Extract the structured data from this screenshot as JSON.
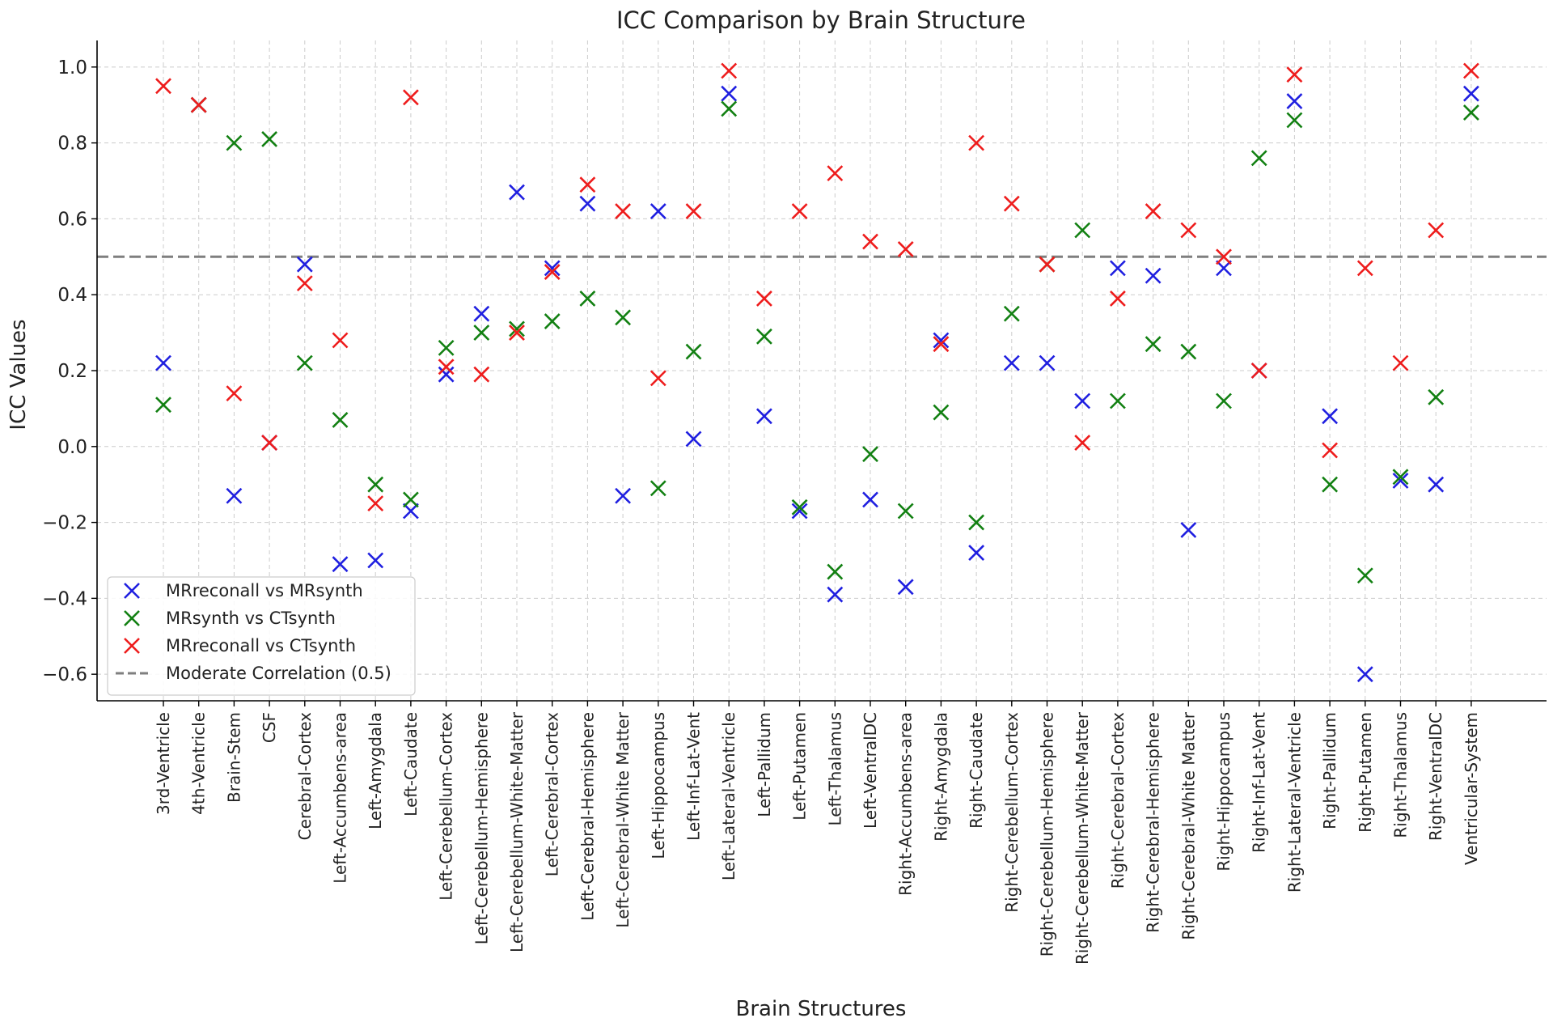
{
  "chart_data": {
    "type": "scatter",
    "title": "ICC Comparison by Brain Structure",
    "xlabel": "Brain Structures",
    "ylabel": "ICC Values",
    "ylim": [
      -0.67,
      1.07
    ],
    "yticks": [
      -0.6,
      -0.4,
      -0.2,
      0.0,
      0.2,
      0.4,
      0.6,
      0.8,
      1.0
    ],
    "ytick_labels": [
      "−0.6",
      "−0.4",
      "−0.2",
      "0.0",
      "0.2",
      "0.4",
      "0.6",
      "0.8",
      "1.0"
    ],
    "grid": true,
    "legend_position": "lower-left",
    "categories": [
      "3rd-Ventricle",
      "4th-Ventricle",
      "Brain-Stem",
      "CSF",
      "Cerebral-Cortex",
      "Left-Accumbens-area",
      "Left-Amygdala",
      "Left-Caudate",
      "Left-Cerebellum-Cortex",
      "Left-Cerebellum-Hemisphere",
      "Left-Cerebellum-White-Matter",
      "Left-Cerebral-Cortex",
      "Left-Cerebral-Hemisphere",
      "Left-Cerebral-White Matter",
      "Left-Hippocampus",
      "Left-Inf-Lat-Vent",
      "Left-Lateral-Ventricle",
      "Left-Pallidum",
      "Left-Putamen",
      "Left-Thalamus",
      "Left-VentralDC",
      "Right-Accumbens-area",
      "Right-Amygdala",
      "Right-Caudate",
      "Right-Cerebellum-Cortex",
      "Right-Cerebellum-Hemisphere",
      "Right-Cerebellum-White-Matter",
      "Right-Cerebral-Cortex",
      "Right-Cerebral-Hemisphere",
      "Right-Cerebral-White Matter",
      "Right-Hippocampus",
      "Right-Inf-Lat-Vent",
      "Right-Lateral-Ventricle",
      "Right-Pallidum",
      "Right-Putamen",
      "Right-Thalamus",
      "Right-VentralDC",
      "Ventricular-System"
    ],
    "series": [
      {
        "name": "MRreconall vs MRsynth",
        "color": "#1f1fe0",
        "marker": "x",
        "values": [
          0.22,
          0.9,
          -0.13,
          0.01,
          0.48,
          -0.31,
          -0.3,
          -0.17,
          0.19,
          0.35,
          0.67,
          0.47,
          0.64,
          -0.13,
          0.62,
          0.02,
          0.93,
          0.08,
          -0.17,
          -0.39,
          -0.14,
          -0.37,
          0.28,
          -0.28,
          0.22,
          0.22,
          0.12,
          0.47,
          0.45,
          -0.22,
          0.47,
          0.2,
          0.91,
          0.08,
          -0.6,
          -0.09,
          -0.1,
          0.93
        ]
      },
      {
        "name": "MRsynth vs CTsynth",
        "color": "#128012",
        "marker": "x",
        "values": [
          0.11,
          0.9,
          0.8,
          0.81,
          0.22,
          0.07,
          -0.1,
          -0.14,
          0.26,
          0.3,
          0.31,
          0.33,
          0.39,
          0.34,
          -0.11,
          0.25,
          0.89,
          0.29,
          -0.16,
          -0.33,
          -0.02,
          -0.17,
          0.09,
          -0.2,
          0.35,
          0.48,
          0.57,
          0.12,
          0.27,
          0.25,
          0.12,
          0.76,
          0.86,
          -0.1,
          -0.34,
          -0.08,
          0.13,
          0.88
        ]
      },
      {
        "name": "MRreconall vs CTsynth",
        "color": "#ee1c1c",
        "marker": "x",
        "values": [
          0.95,
          0.9,
          0.14,
          0.01,
          0.43,
          0.28,
          -0.15,
          0.92,
          0.21,
          0.19,
          0.3,
          0.46,
          0.69,
          0.62,
          0.18,
          0.62,
          0.99,
          0.39,
          0.62,
          0.72,
          0.54,
          0.52,
          0.27,
          0.8,
          0.64,
          0.48,
          0.01,
          0.39,
          0.62,
          0.57,
          0.5,
          0.2,
          0.98,
          -0.01,
          0.47,
          0.22,
          0.57,
          0.99
        ]
      }
    ],
    "reference_line": {
      "name": "Moderate Correlation (0.5)",
      "value": 0.5,
      "color": "#7f7f7f",
      "style": "dashed"
    }
  }
}
